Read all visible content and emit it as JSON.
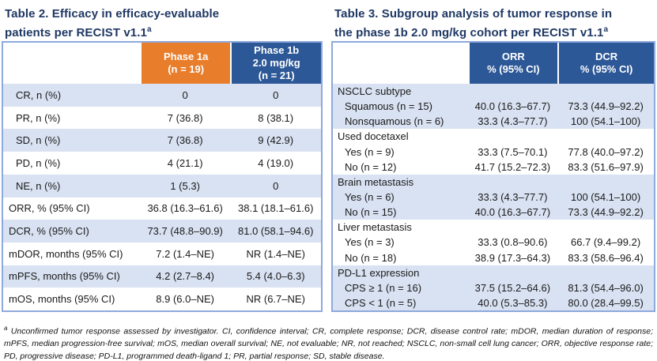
{
  "colors": {
    "title_navy": "#1F3864",
    "header_orange": "#E87D2B",
    "header_blue": "#2D5897",
    "row_shade": "#D9E2F2",
    "table_border": "#8EA9DB",
    "body_text": "#1A1A1A"
  },
  "table2": {
    "title_line1": "Table 2. Efficacy in efficacy-evaluable",
    "title_line2": "patients per RECIST v1.1",
    "title_sup": "a",
    "col_phase1a": {
      "line1": "Phase 1a",
      "line2": "(n = 19)"
    },
    "col_phase1b": {
      "line1": "Phase 1b",
      "line2": "2.0 mg/kg",
      "line3": "(n = 21)"
    },
    "rows": [
      {
        "label": "CR, n (%)",
        "phase1a": "0",
        "phase1b": "0",
        "indented": true,
        "shaded": true
      },
      {
        "label": "PR, n (%)",
        "phase1a": "7 (36.8)",
        "phase1b": "8 (38.1)",
        "indented": true,
        "shaded": false
      },
      {
        "label": "SD, n (%)",
        "phase1a": "7 (36.8)",
        "phase1b": "9 (42.9)",
        "indented": true,
        "shaded": true
      },
      {
        "label": "PD, n (%)",
        "phase1a": "4 (21.1)",
        "phase1b": "4 (19.0)",
        "indented": true,
        "shaded": false
      },
      {
        "label": "NE, n (%)",
        "phase1a": "1 (5.3)",
        "phase1b": "0",
        "indented": true,
        "shaded": true
      },
      {
        "label": "ORR, % (95% CI)",
        "phase1a": "36.8 (16.3–61.6)",
        "phase1b": "38.1 (18.1–61.6)",
        "indented": false,
        "shaded": false
      },
      {
        "label": "DCR, % (95% CI)",
        "phase1a": "73.7 (48.8–90.9)",
        "phase1b": "81.0 (58.1–94.6)",
        "indented": false,
        "shaded": true
      },
      {
        "label": "mDOR, months (95% CI)",
        "phase1a": "7.2 (1.4–NE)",
        "phase1b": "NR (1.4–NE)",
        "indented": false,
        "shaded": false
      },
      {
        "label": "mPFS, months (95% CI)",
        "phase1a": "4.2 (2.7–8.4)",
        "phase1b": "5.4 (4.0–6.3)",
        "indented": false,
        "shaded": true
      },
      {
        "label": "mOS, months (95% CI)",
        "phase1a": "8.9 (6.0–NE)",
        "phase1b": "NR (6.7–NE)",
        "indented": false,
        "shaded": false
      }
    ]
  },
  "table3": {
    "title_line1": "Table 3. Subgroup analysis of tumor response in",
    "title_line2": "the phase 1b 2.0 mg/kg cohort per RECIST v1.1",
    "title_sup": "a",
    "col_orr": {
      "line1": "ORR",
      "line2": "% (95% CI)"
    },
    "col_dcr": {
      "line1": "DCR",
      "line2": "% (95% CI)"
    },
    "groups": [
      {
        "label": "NSCLC subtype",
        "shaded": true,
        "rows": [
          {
            "label": "Squamous (n = 15)",
            "orr": "40.0 (16.3–67.7)",
            "dcr": "73.3 (44.9–92.2)"
          },
          {
            "label": "Nonsquamous (n = 6)",
            "orr": "33.3 (4.3–77.7)",
            "dcr": "100 (54.1–100)"
          }
        ]
      },
      {
        "label": "Used docetaxel",
        "shaded": false,
        "rows": [
          {
            "label": "Yes (n = 9)",
            "orr": "33.3 (7.5–70.1)",
            "dcr": "77.8 (40.0–97.2)"
          },
          {
            "label": "No (n = 12)",
            "orr": "41.7 (15.2–72.3)",
            "dcr": "83.3 (51.6–97.9)"
          }
        ]
      },
      {
        "label": "Brain metastasis",
        "shaded": true,
        "rows": [
          {
            "label": "Yes (n = 6)",
            "orr": "33.3 (4.3–77.7)",
            "dcr": "100 (54.1–100)"
          },
          {
            "label": "No (n = 15)",
            "orr": "40.0 (16.3–67.7)",
            "dcr": "73.3 (44.9–92.2)"
          }
        ]
      },
      {
        "label": "Liver metastasis",
        "shaded": false,
        "rows": [
          {
            "label": "Yes (n = 3)",
            "orr": "33.3 (0.8–90.6)",
            "dcr": "66.7 (9.4–99.2)"
          },
          {
            "label": "No (n = 18)",
            "orr": "38.9 (17.3–64.3)",
            "dcr": "83.3 (58.6–96.4)"
          }
        ]
      },
      {
        "label": "PD-L1 expression",
        "shaded": true,
        "rows": [
          {
            "label": "CPS ≥ 1 (n = 16)",
            "orr": "37.5 (15.2–64.6)",
            "dcr": "81.3 (54.4–96.0)"
          },
          {
            "label": "CPS < 1 (n = 5)",
            "orr": "40.0 (5.3–85.3)",
            "dcr": "80.0 (28.4–99.5)"
          }
        ]
      }
    ]
  },
  "footnote": {
    "sup": "a",
    "text": " Unconfirmed tumor response assessed by investigator. CI, confidence interval; CR, complete response; DCR, disease control rate; mDOR, median duration of response; mPFS, median progression-free survival; mOS, median overall survival; NE, not evaluable; NR, not reached; NSCLC, non-small cell lung cancer; ORR, objective response rate; PD, progressive disease; PD-L1, programmed death-ligand 1; PR, partial response; SD, stable disease."
  }
}
